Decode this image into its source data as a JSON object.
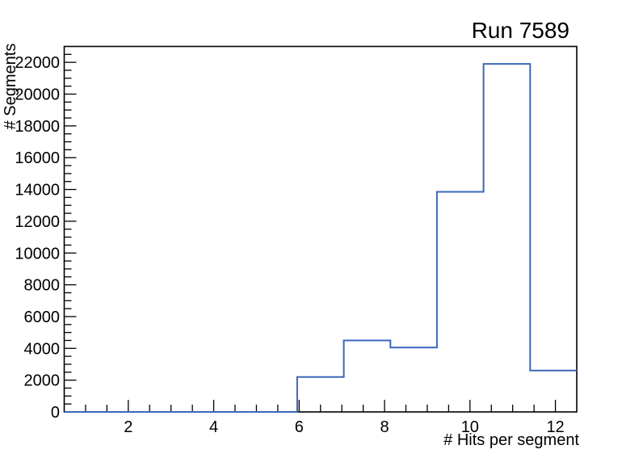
{
  "title": "Run 7589",
  "chart_data": {
    "type": "histogram",
    "title": "Run 7589",
    "xlabel": "# Hits per segment",
    "ylabel": "# Segments",
    "xlim": [
      0.5,
      12.5
    ],
    "ylim": [
      0,
      23000
    ],
    "bin_edges": [
      0.5,
      1.591,
      2.682,
      3.773,
      4.864,
      5.955,
      7.045,
      8.136,
      9.227,
      10.318,
      11.409,
      12.5
    ],
    "counts": [
      0,
      0,
      0,
      0,
      0,
      2200,
      4500,
      4050,
      13850,
      21900,
      2600
    ],
    "x_major_ticks": [
      2,
      4,
      6,
      8,
      10,
      12
    ],
    "x_tick_labels": [
      "2",
      "4",
      "6",
      "8",
      "10",
      "12"
    ],
    "x_minor_tick_step": 0.5,
    "y_major_tick_step": 2000,
    "y_minor_tick_step": 500,
    "y_tick_labels": [
      "0",
      "2000",
      "4000",
      "6000",
      "8000",
      "10000",
      "12000",
      "14000",
      "16000",
      "18000",
      "20000",
      "22000"
    ],
    "grid": false,
    "legend": "none",
    "line_color": "#3a67bb",
    "axis_color": "#000000",
    "background_color": "#ffffff"
  }
}
